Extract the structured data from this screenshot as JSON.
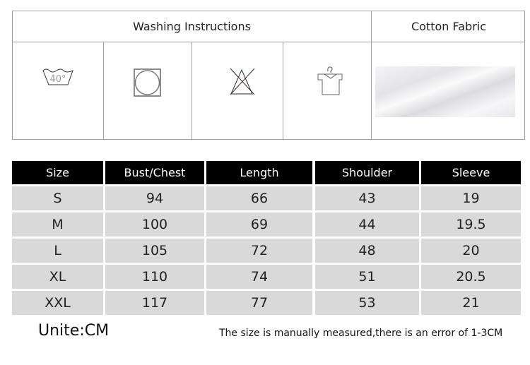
{
  "care": {
    "washing_title": "Washing Instructions",
    "fabric_title": "Cotton Fabric",
    "icons": [
      "wash-40-icon",
      "tumble-dry-icon",
      "no-bleach-icon",
      "hang-dry-icon"
    ],
    "wash_temp": "40°"
  },
  "size_table": {
    "headers": [
      "Size",
      "Bust/Chest",
      "Length",
      "Shoulder",
      "Sleeve"
    ],
    "rows": [
      [
        "S",
        "94",
        "66",
        "43",
        "19"
      ],
      [
        "M",
        "100",
        "69",
        "44",
        "19.5"
      ],
      [
        "L",
        "105",
        "72",
        "48",
        "20"
      ],
      [
        "XL",
        "110",
        "74",
        "51",
        "20.5"
      ],
      [
        "XXL",
        "117",
        "77",
        "53",
        "21"
      ]
    ]
  },
  "footer": {
    "unit": "Unite:CM",
    "note": "The size is manually measured,there is an error of 1-3CM"
  },
  "colors": {
    "header_bg": "#000000",
    "cell_bg": "#d9d9d9"
  }
}
